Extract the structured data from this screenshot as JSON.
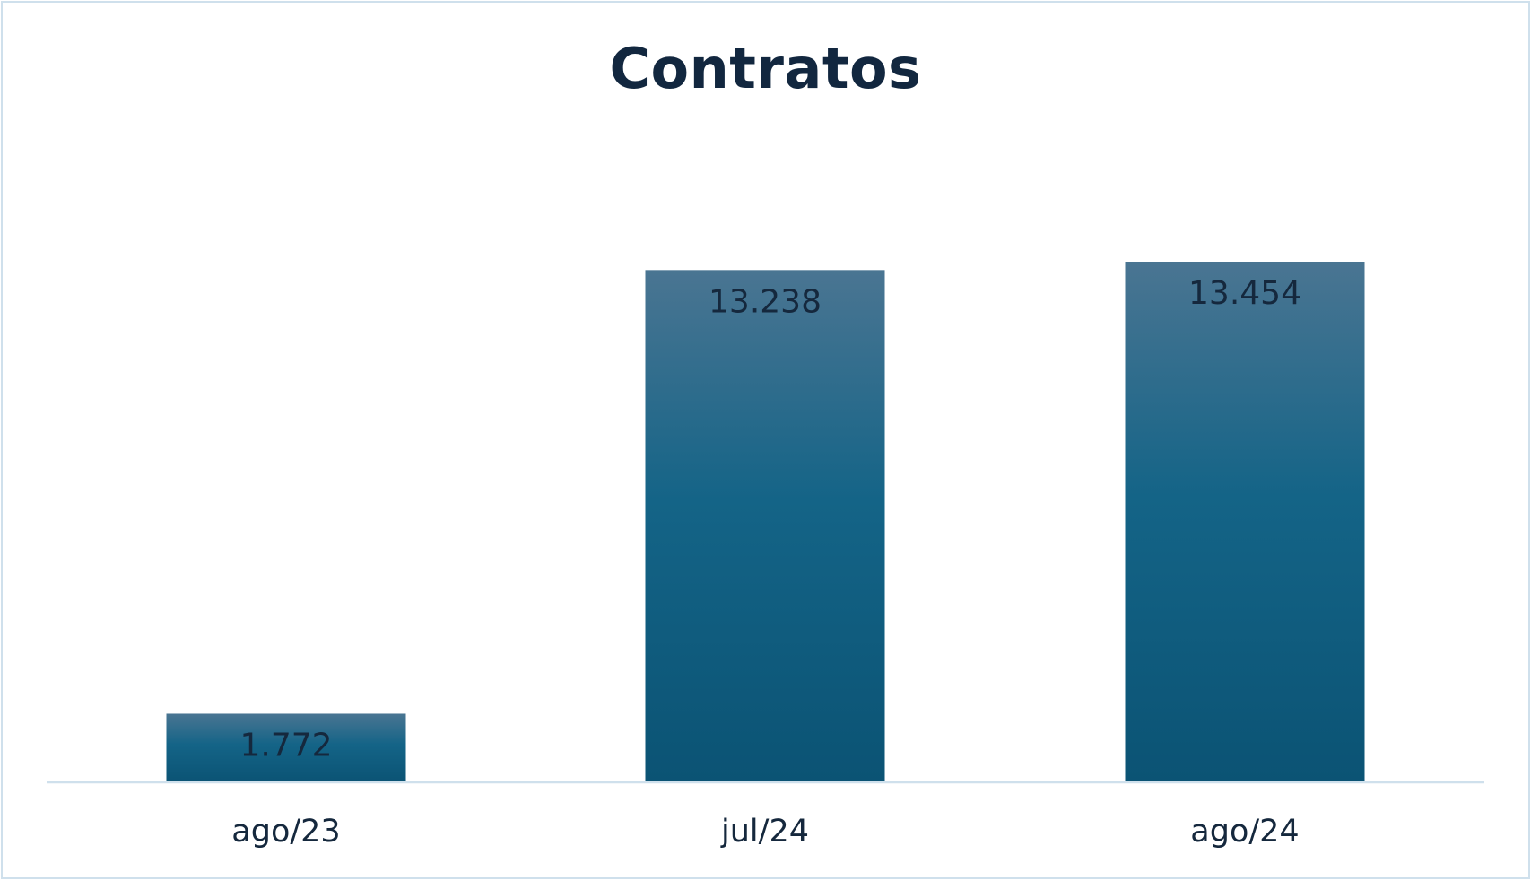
{
  "chart_data": {
    "type": "bar",
    "title": "Contratos",
    "categories": [
      "ago/23",
      "jul/24",
      "ago/24"
    ],
    "values": [
      1772,
      13238,
      13454
    ],
    "value_labels": [
      "1.772",
      "13.238",
      "13.454"
    ],
    "xlabel": "",
    "ylabel": "",
    "ylim": [
      0,
      13454
    ],
    "grid": false,
    "legend": "none",
    "colors": {
      "bar_top": "#4a7592",
      "bar_mid": "#146487",
      "bar_bottom": "#0b5374",
      "axis": "#cfe0ec",
      "text": "#15283d"
    }
  }
}
